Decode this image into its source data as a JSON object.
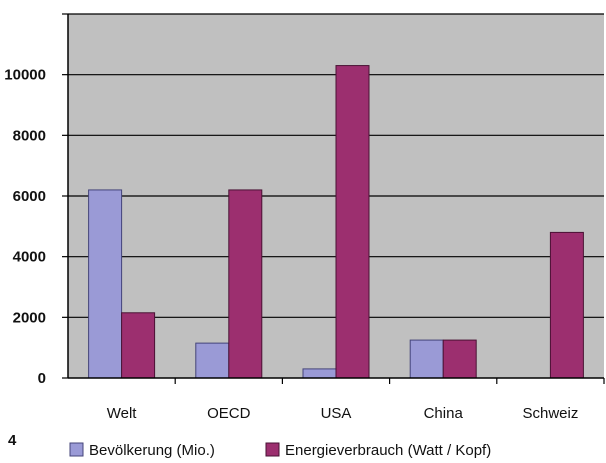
{
  "figure_number": "4",
  "chart_data": {
    "type": "bar",
    "categories": [
      "Welt",
      "OECD",
      "USA",
      "China",
      "Schweiz"
    ],
    "series": [
      {
        "name": "Bevölkerung (Mio.)",
        "values": [
          6200,
          1150,
          300,
          1250,
          null
        ],
        "color": "#9a9ad6",
        "edge": "#44447a"
      },
      {
        "name": "Energieverbrauch (Watt / Kopf)",
        "values": [
          2150,
          6200,
          10300,
          1250,
          4800
        ],
        "color": "#9c2f6f",
        "edge": "#4a1234"
      }
    ],
    "ylim": [
      0,
      12000
    ],
    "yticks": [
      "0",
      "2000",
      "4000",
      "6000",
      "8000",
      "10000"
    ],
    "plot_bg": "#c0c0c0",
    "grid": true,
    "legend": "bottom",
    "title": "",
    "xlabel": "",
    "ylabel": ""
  }
}
